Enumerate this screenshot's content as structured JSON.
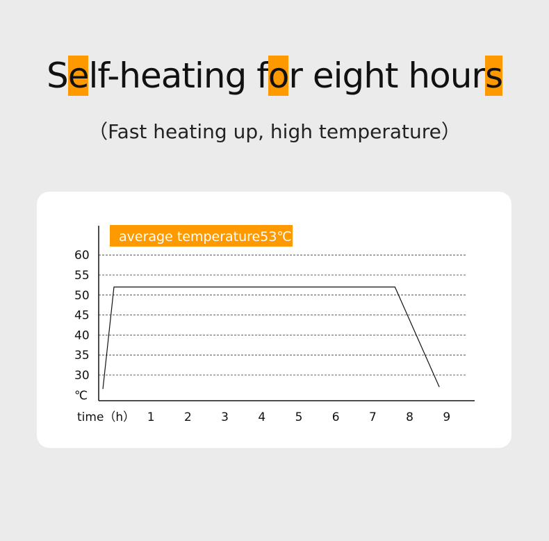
{
  "title": {
    "parts": [
      "S",
      "e",
      "lf-heating f",
      "o",
      "r eight hour",
      "s"
    ],
    "highlight_color": "#ff9900"
  },
  "subtitle": "（Fast heating up, high temperature）",
  "chart_data": {
    "type": "line",
    "annotation": "average temperature53℃",
    "annotation_color": "#ff9900",
    "ylabel": "℃",
    "xlabel": "time（h）",
    "yticks": [
      30,
      35,
      40,
      45,
      50,
      55,
      60
    ],
    "xticks": [
      1,
      2,
      3,
      4,
      5,
      6,
      7,
      8,
      9
    ],
    "ylim": [
      25,
      65
    ],
    "grid": "horizontal-dashed",
    "series": [
      {
        "x": [
          -0.3,
          0,
          7.6,
          8.8
        ],
        "y": [
          26.5,
          52,
          52,
          27
        ]
      }
    ]
  }
}
